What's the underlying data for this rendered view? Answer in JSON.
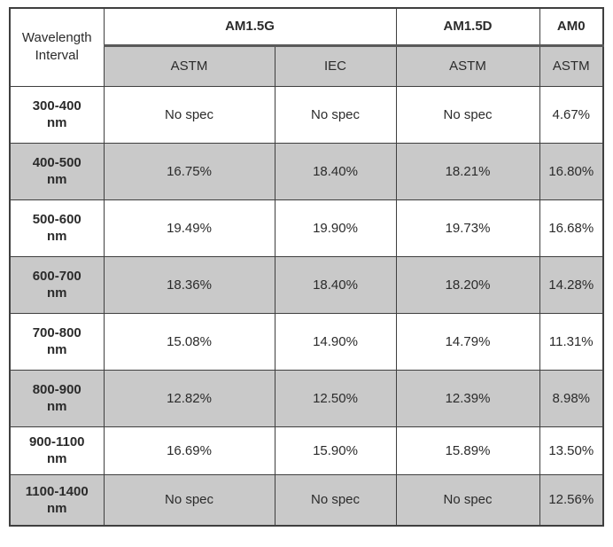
{
  "page": {
    "background": "#ffffff"
  },
  "table": {
    "corner_header": "Wavelength Interval",
    "column_groups": [
      {
        "label": "AM1.5G",
        "span": 2
      },
      {
        "label": "AM1.5D",
        "span": 1
      },
      {
        "label": "AM0",
        "span": 1
      }
    ],
    "sub_headers": [
      "ASTM",
      "IEC",
      "ASTM",
      "ASTM"
    ],
    "rows": [
      {
        "range": "300-400",
        "unit": "nm",
        "values": [
          "No spec",
          "No spec",
          "No spec",
          "4.67%"
        ],
        "shaded": false
      },
      {
        "range": "400-500",
        "unit": "nm",
        "values": [
          "16.75%",
          "18.40%",
          "18.21%",
          "16.80%"
        ],
        "shaded": true
      },
      {
        "range": "500-600",
        "unit": "nm",
        "values": [
          "19.49%",
          "19.90%",
          "19.73%",
          "16.68%"
        ],
        "shaded": false
      },
      {
        "range": "600-700",
        "unit": "nm",
        "values": [
          "18.36%",
          "18.40%",
          "18.20%",
          "14.28%"
        ],
        "shaded": true
      },
      {
        "range": "700-800",
        "unit": "nm",
        "values": [
          "15.08%",
          "14.90%",
          "14.79%",
          "11.31%"
        ],
        "shaded": false
      },
      {
        "range": "800-900",
        "unit": "nm",
        "values": [
          "12.82%",
          "12.50%",
          "12.39%",
          "8.98%"
        ],
        "shaded": true
      },
      {
        "range": "900-1100",
        "unit": "nm",
        "values": [
          "16.69%",
          "15.90%",
          "15.89%",
          "13.50%"
        ],
        "shaded": false
      },
      {
        "range": "1100-1400",
        "unit": "nm",
        "values": [
          "No spec",
          "No spec",
          "No spec",
          "12.56%"
        ],
        "shaded": true
      }
    ],
    "colors": {
      "shaded_bg": "#c9c9c9",
      "header_band": "#595959",
      "grid": "#3f3f3f",
      "text": "#2b2b2b"
    }
  }
}
